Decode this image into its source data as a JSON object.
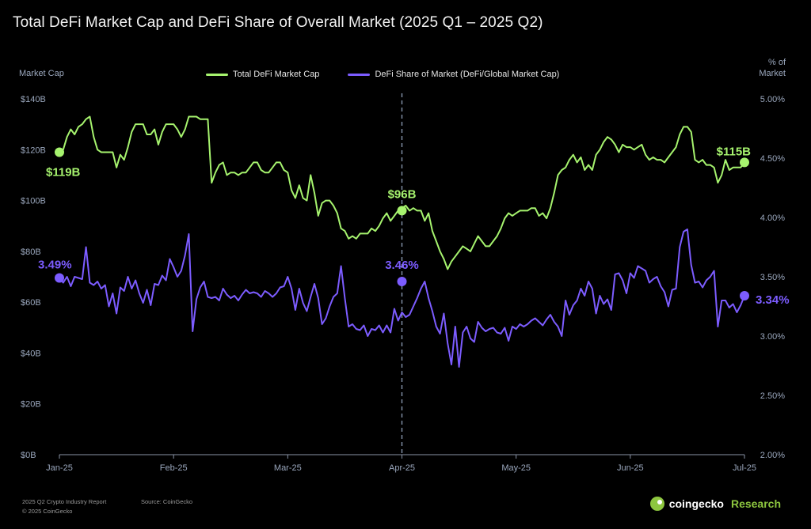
{
  "header": {
    "title": "Total DeFi Market Cap and DeFi Share of Overall Market (2025 Q1 – 2025 Q2)"
  },
  "axes": {
    "left_title": "Market Cap",
    "right_title_line1": "% of",
    "right_title_line2": "Market"
  },
  "legend": {
    "items": [
      {
        "label": "Total DeFi Market Cap",
        "color": "#a6f36e"
      },
      {
        "label": "DeFi Share of Market (DeFi/Global Market Cap)",
        "color": "#7c5cff"
      }
    ]
  },
  "footer": {
    "report": "2025 Q2 Crypto Industry Report",
    "source": "Source: CoinGecko",
    "copyright": "© 2025 CoinGecko",
    "brand_name": "coingecko",
    "brand_suffix": "Research"
  },
  "chart_data": {
    "type": "line",
    "x_ticks": [
      "Jan-25",
      "Feb-25",
      "Mar-25",
      "Apr-25",
      "May-25",
      "Jun-25",
      "Jul-25"
    ],
    "y_left": {
      "label": "Market Cap",
      "range": [
        0,
        140
      ],
      "ticks": [
        "$0B",
        "$20B",
        "$40B",
        "$60B",
        "$80B",
        "$100B",
        "$120B",
        "$140B"
      ]
    },
    "y_right": {
      "label": "% of Market",
      "range": [
        2.0,
        5.0
      ],
      "ticks": [
        "2.00%",
        "2.50%",
        "3.00%",
        "3.50%",
        "4.00%",
        "4.50%",
        "5.00%"
      ]
    },
    "grid": false,
    "legend_position": "top-center",
    "reference_line": {
      "x": "Apr-25",
      "style": "dashed"
    },
    "series": [
      {
        "name": "Total DeFi Market Cap",
        "axis": "left",
        "color": "#a6f36e",
        "unit": "$B",
        "values": [
          119,
          120,
          125,
          128,
          126,
          129,
          130,
          132,
          133,
          125,
          120,
          119,
          119,
          119,
          119,
          113,
          118,
          116,
          121,
          127,
          130,
          130,
          130,
          126,
          126,
          128,
          122,
          127,
          130,
          130,
          130,
          128,
          125,
          128,
          133,
          133,
          133,
          132,
          132,
          132,
          107,
          111,
          114,
          115,
          110,
          111,
          111,
          110,
          111,
          111,
          113,
          115,
          115,
          112,
          111,
          111,
          113,
          115,
          115,
          112,
          111,
          104,
          101,
          106,
          101,
          100,
          110,
          103,
          94,
          99,
          100,
          100,
          98,
          95,
          89,
          88,
          85,
          86,
          85,
          87,
          87,
          87,
          89,
          88,
          90,
          93,
          95,
          92,
          94,
          96,
          97,
          98,
          96,
          97,
          96,
          96,
          92,
          95,
          88,
          84,
          80,
          77,
          73,
          76,
          78,
          80,
          82,
          81,
          80,
          83,
          86,
          84,
          82,
          82,
          84,
          86,
          89,
          93,
          95,
          94,
          95,
          96,
          96,
          96,
          97,
          97,
          94,
          95,
          93,
          97,
          103,
          110,
          112,
          113,
          116,
          118,
          115,
          117,
          112,
          114,
          112,
          118,
          120,
          123,
          125,
          124,
          122,
          119,
          122,
          121,
          121,
          120,
          121,
          122,
          118,
          116,
          117,
          116,
          116,
          115,
          117,
          119,
          121,
          126,
          129,
          129,
          127,
          116,
          115,
          116,
          114,
          114,
          113,
          107,
          110,
          116,
          112,
          113,
          113,
          113,
          115
        ],
        "point_labels": [
          {
            "x": "Jan-25",
            "value": 119,
            "label": "$119B"
          },
          {
            "x": "Apr-25",
            "value": 96,
            "label": "$96B"
          },
          {
            "x": "Jul-25",
            "value": 115,
            "label": "$115B"
          }
        ]
      },
      {
        "name": "DeFi Share of Market (DeFi/Global Market Cap)",
        "axis": "right",
        "color": "#7c5cff",
        "unit": "%",
        "values": [
          3.49,
          3.45,
          3.5,
          3.42,
          3.5,
          3.49,
          3.48,
          3.75,
          3.45,
          3.43,
          3.46,
          3.4,
          3.43,
          3.25,
          3.36,
          3.19,
          3.41,
          3.38,
          3.5,
          3.4,
          3.47,
          3.36,
          3.28,
          3.39,
          3.26,
          3.44,
          3.43,
          3.51,
          3.47,
          3.65,
          3.58,
          3.5,
          3.55,
          3.68,
          3.86,
          3.04,
          3.31,
          3.41,
          3.46,
          3.33,
          3.32,
          3.33,
          3.3,
          3.4,
          3.35,
          3.32,
          3.34,
          3.3,
          3.35,
          3.39,
          3.36,
          3.37,
          3.36,
          3.33,
          3.38,
          3.36,
          3.33,
          3.36,
          3.41,
          3.42,
          3.5,
          3.4,
          3.22,
          3.4,
          3.28,
          3.21,
          3.33,
          3.44,
          3.32,
          3.1,
          3.15,
          3.25,
          3.33,
          3.36,
          3.59,
          3.32,
          3.08,
          3.1,
          3.06,
          3.05,
          3.09,
          3.0,
          3.06,
          3.05,
          3.09,
          3.03,
          3.09,
          3.03,
          3.23,
          3.13,
          3.2,
          3.16,
          3.18,
          3.25,
          3.32,
          3.4,
          3.46,
          3.32,
          3.21,
          3.08,
          3.02,
          3.19,
          2.94,
          2.76,
          3.08,
          2.74,
          3.03,
          3.08,
          2.98,
          2.95,
          3.12,
          3.07,
          3.04,
          3.06,
          3.07,
          3.03,
          3.02,
          3.07,
          2.96,
          3.08,
          3.06,
          3.1,
          3.08,
          3.1,
          3.13,
          3.15,
          3.12,
          3.09,
          3.14,
          3.18,
          3.12,
          3.08,
          3.0,
          3.3,
          3.18,
          3.26,
          3.3,
          3.4,
          3.34,
          3.46,
          3.4,
          3.19,
          3.34,
          3.27,
          3.31,
          3.22,
          3.52,
          3.53,
          3.47,
          3.36,
          3.53,
          3.49,
          3.59,
          3.57,
          3.55,
          3.45,
          3.48,
          3.5,
          3.42,
          3.37,
          3.25,
          3.39,
          3.4,
          3.75,
          3.88,
          3.9,
          3.6,
          3.45,
          3.46,
          3.41,
          3.47,
          3.5,
          3.55,
          3.08,
          3.3,
          3.3,
          3.24,
          3.27,
          3.2,
          3.26,
          3.34
        ],
        "point_labels": [
          {
            "x": "Jan-25",
            "value": 3.49,
            "label": "3.49%"
          },
          {
            "x": "Apr-25",
            "value": 3.46,
            "label": "3.46%"
          },
          {
            "x": "Jul-25",
            "value": 3.34,
            "label": "3.34%"
          }
        ]
      }
    ]
  }
}
